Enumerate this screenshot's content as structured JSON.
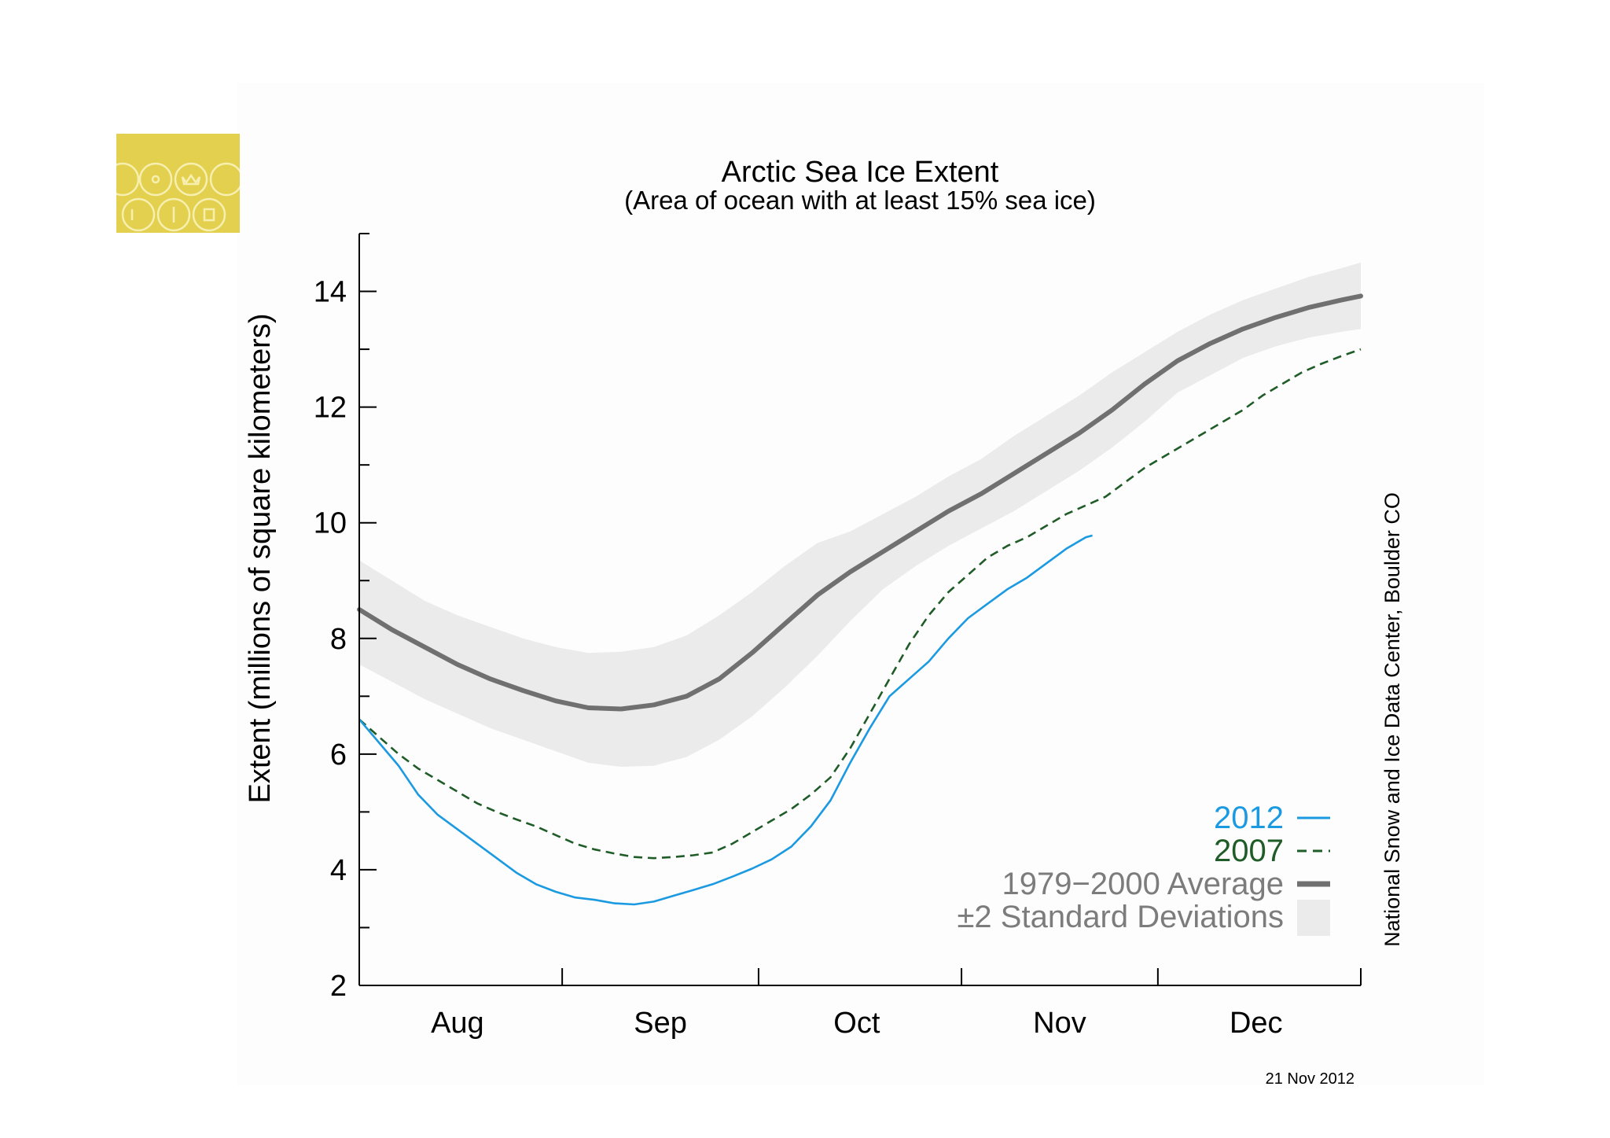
{
  "logo": {
    "icon": "nsidc-yellow-emblem-icon",
    "color": "#e2d04e"
  },
  "colors": {
    "y2012": "#1b9ae2",
    "y2007": "#1f5c28",
    "average": "#707070",
    "band": "#ebebeb",
    "axis": "#000000",
    "legend_text": "#7c7c7c"
  },
  "chart_data": {
    "type": "line",
    "title": "Arctic Sea Ice Extent",
    "subtitle": "(Area of ocean with at least 15% sea ice)",
    "ylabel": "Extent (millions of square kilometers)",
    "xlabel": "",
    "ylim": [
      2,
      15
    ],
    "xlim": [
      0,
      153
    ],
    "yticks": [
      2,
      4,
      6,
      8,
      10,
      12,
      14
    ],
    "x_tick_days": [
      0,
      31,
      61,
      92,
      122,
      153
    ],
    "month_labels": [
      {
        "label": "Aug",
        "day": 15
      },
      {
        "label": "Sep",
        "day": 46
      },
      {
        "label": "Oct",
        "day": 76
      },
      {
        "label": "Nov",
        "day": 107
      },
      {
        "label": "Dec",
        "day": 137
      }
    ],
    "credit": "National Snow and Ice Data Center, Boulder CO",
    "date_stamp": "21 Nov 2012",
    "series": [
      {
        "name": "2012",
        "style": "solid",
        "x": [
          0,
          3,
          6,
          9,
          12,
          15,
          18,
          21,
          24,
          27,
          30,
          33,
          36,
          39,
          42,
          45,
          48,
          51,
          54,
          57,
          60,
          63,
          66,
          69,
          72,
          75,
          78,
          81,
          84,
          87,
          90,
          93,
          96,
          99,
          102,
          105,
          108,
          111,
          112
        ],
        "values": [
          6.6,
          6.2,
          5.8,
          5.3,
          4.95,
          4.7,
          4.45,
          4.2,
          3.95,
          3.75,
          3.62,
          3.52,
          3.48,
          3.42,
          3.4,
          3.45,
          3.55,
          3.65,
          3.75,
          3.88,
          4.02,
          4.18,
          4.4,
          4.75,
          5.2,
          5.85,
          6.45,
          7.0,
          7.3,
          7.6,
          8.0,
          8.35,
          8.6,
          8.85,
          9.05,
          9.3,
          9.55,
          9.75,
          9.78
        ]
      },
      {
        "name": "2007",
        "style": "dashed",
        "x": [
          0,
          3,
          6,
          9,
          12,
          15,
          18,
          21,
          24,
          27,
          30,
          33,
          36,
          39,
          42,
          45,
          48,
          51,
          54,
          57,
          60,
          63,
          66,
          69,
          72,
          75,
          78,
          81,
          84,
          87,
          90,
          93,
          96,
          99,
          102,
          105,
          108,
          111,
          114,
          117,
          120,
          123,
          126,
          129,
          132,
          135,
          138,
          141,
          144,
          147,
          150,
          153
        ],
        "values": [
          6.6,
          6.3,
          6.0,
          5.75,
          5.55,
          5.35,
          5.15,
          5.0,
          4.87,
          4.75,
          4.6,
          4.45,
          4.35,
          4.28,
          4.22,
          4.2,
          4.22,
          4.25,
          4.3,
          4.45,
          4.65,
          4.85,
          5.05,
          5.3,
          5.6,
          6.1,
          6.7,
          7.3,
          7.9,
          8.4,
          8.8,
          9.1,
          9.4,
          9.6,
          9.75,
          9.95,
          10.15,
          10.3,
          10.45,
          10.7,
          10.95,
          11.15,
          11.35,
          11.55,
          11.75,
          11.95,
          12.2,
          12.4,
          12.6,
          12.75,
          12.88,
          13.0
        ]
      },
      {
        "name": "1979−2000 Average",
        "style": "thick",
        "x": [
          0,
          5,
          10,
          15,
          20,
          25,
          30,
          35,
          40,
          45,
          50,
          55,
          60,
          65,
          70,
          75,
          80,
          85,
          90,
          95,
          100,
          105,
          110,
          115,
          120,
          125,
          130,
          135,
          140,
          145,
          150,
          153
        ],
        "values": [
          8.5,
          8.15,
          7.85,
          7.55,
          7.3,
          7.1,
          6.92,
          6.8,
          6.78,
          6.85,
          7.0,
          7.3,
          7.75,
          8.25,
          8.75,
          9.15,
          9.5,
          9.85,
          10.2,
          10.5,
          10.85,
          11.2,
          11.55,
          11.95,
          12.4,
          12.8,
          13.1,
          13.35,
          13.55,
          13.72,
          13.85,
          13.92
        ]
      }
    ],
    "std_band": {
      "name": "±2 Standard Deviations",
      "x": [
        0,
        5,
        10,
        15,
        20,
        25,
        30,
        35,
        40,
        45,
        50,
        55,
        60,
        65,
        70,
        75,
        80,
        85,
        90,
        95,
        100,
        105,
        110,
        115,
        120,
        125,
        130,
        135,
        140,
        145,
        150,
        153
      ],
      "upper": [
        9.35,
        9.0,
        8.65,
        8.4,
        8.2,
        8.0,
        7.85,
        7.75,
        7.77,
        7.85,
        8.05,
        8.4,
        8.8,
        9.25,
        9.65,
        9.85,
        10.15,
        10.45,
        10.8,
        11.1,
        11.5,
        11.85,
        12.2,
        12.6,
        12.95,
        13.3,
        13.6,
        13.85,
        14.05,
        14.25,
        14.4,
        14.5
      ],
      "lower": [
        7.55,
        7.25,
        6.95,
        6.7,
        6.45,
        6.25,
        6.05,
        5.85,
        5.78,
        5.8,
        5.95,
        6.25,
        6.65,
        7.15,
        7.7,
        8.3,
        8.85,
        9.25,
        9.6,
        9.9,
        10.2,
        10.55,
        10.9,
        11.3,
        11.75,
        12.25,
        12.55,
        12.85,
        13.05,
        13.2,
        13.3,
        13.35
      ]
    },
    "legend": {
      "position": "bottom-right",
      "entries": [
        "2012",
        "2007",
        "1979−2000 Average",
        "±2 Standard Deviations"
      ]
    }
  }
}
